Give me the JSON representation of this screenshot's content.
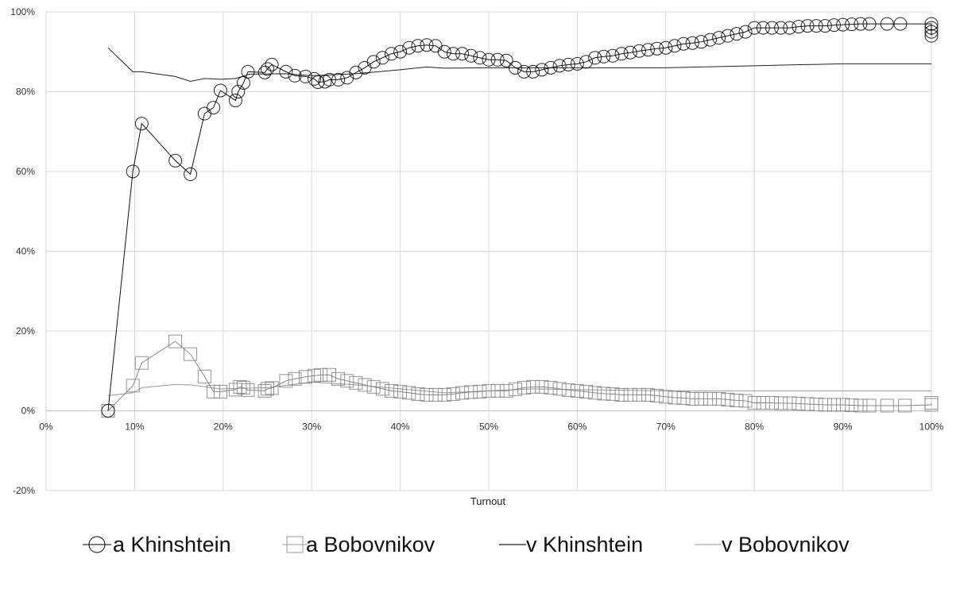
{
  "chart_data": {
    "type": "line",
    "title": "",
    "xlabel": "Turnout",
    "ylabel": "",
    "xlim": [
      0,
      100
    ],
    "ylim": [
      -20,
      100
    ],
    "grid": true,
    "legend_position": "bottom",
    "x_ticks": [
      "0%",
      "10%",
      "20%",
      "30%",
      "40%",
      "50%",
      "60%",
      "70%",
      "80%",
      "90%",
      "100%"
    ],
    "y_ticks": [
      "-20%",
      "0%",
      "20%",
      "40%",
      "60%",
      "80%",
      "100%"
    ],
    "series": [
      {
        "name": "a Khinshtein",
        "color": "#000000",
        "marker": "circle",
        "points": [
          [
            7,
            0
          ],
          [
            9.8,
            60
          ],
          [
            10.8,
            72
          ],
          [
            14.6,
            62.7
          ],
          [
            16.3,
            59.3
          ],
          [
            17.9,
            74.5
          ],
          [
            18.9,
            76
          ],
          [
            19.7,
            80.3
          ],
          [
            21.4,
            77.8
          ],
          [
            21.7,
            80
          ],
          [
            22.3,
            82.2
          ],
          [
            22.8,
            85
          ],
          [
            24.7,
            84.8
          ],
          [
            25,
            85.7
          ],
          [
            25.5,
            86.8
          ],
          [
            27.1,
            85
          ],
          [
            28.1,
            84
          ],
          [
            29.3,
            83.8
          ],
          [
            30.3,
            83.2
          ],
          [
            30.7,
            82.4
          ],
          [
            31.5,
            82.5
          ],
          [
            32,
            83
          ],
          [
            33,
            83
          ],
          [
            34,
            83.5
          ],
          [
            35,
            84.8
          ],
          [
            36,
            86
          ],
          [
            37,
            87.5
          ],
          [
            38,
            88.5
          ],
          [
            39,
            89.5
          ],
          [
            40,
            90
          ],
          [
            41,
            91
          ],
          [
            42,
            91.5
          ],
          [
            43,
            91.7
          ],
          [
            44,
            91.5
          ],
          [
            45,
            90
          ],
          [
            46,
            89.5
          ],
          [
            47,
            89.5
          ],
          [
            48,
            89
          ],
          [
            49,
            88.5
          ],
          [
            50,
            88
          ],
          [
            51,
            88
          ],
          [
            52,
            87.8
          ],
          [
            53,
            86
          ],
          [
            54,
            85
          ],
          [
            55,
            85
          ],
          [
            56,
            85.5
          ],
          [
            57,
            86
          ],
          [
            58,
            86.5
          ],
          [
            59,
            86.8
          ],
          [
            60,
            87
          ],
          [
            61,
            87.5
          ],
          [
            62,
            88.5
          ],
          [
            63,
            88.8
          ],
          [
            64,
            89
          ],
          [
            65,
            89.5
          ],
          [
            66,
            89.8
          ],
          [
            67,
            90.2
          ],
          [
            68,
            90.5
          ],
          [
            69,
            90.8
          ],
          [
            70,
            91
          ],
          [
            71,
            91.5
          ],
          [
            72,
            92
          ],
          [
            73,
            92.2
          ],
          [
            74,
            92.5
          ],
          [
            75,
            93
          ],
          [
            76,
            93.5
          ],
          [
            77,
            94
          ],
          [
            78,
            94.5
          ],
          [
            79,
            95
          ],
          [
            80,
            96
          ],
          [
            81,
            96
          ],
          [
            82,
            96
          ],
          [
            83,
            96
          ],
          [
            84,
            96
          ],
          [
            85,
            96.3
          ],
          [
            86,
            96.5
          ],
          [
            87,
            96.5
          ],
          [
            88,
            96.5
          ],
          [
            89,
            96.7
          ],
          [
            90,
            96.8
          ],
          [
            91,
            96.9
          ],
          [
            92,
            97
          ],
          [
            93,
            97
          ],
          [
            95,
            97
          ],
          [
            96.5,
            97
          ],
          [
            100,
            97
          ],
          [
            100,
            96
          ],
          [
            100,
            95
          ],
          [
            100,
            94
          ]
        ]
      },
      {
        "name": "a Bobovnikov",
        "color": "#808080",
        "marker": "square",
        "points": [
          [
            7,
            0
          ],
          [
            9.8,
            6.3
          ],
          [
            10.8,
            12
          ],
          [
            14.6,
            17.4
          ],
          [
            16.3,
            14.2
          ],
          [
            17.9,
            8.6
          ],
          [
            18.9,
            4.8
          ],
          [
            19.7,
            4.8
          ],
          [
            21.4,
            5.3
          ],
          [
            21.9,
            6
          ],
          [
            22.3,
            5.8
          ],
          [
            22.8,
            5.2
          ],
          [
            24.7,
            5
          ],
          [
            25,
            5.5
          ],
          [
            25.5,
            5.7
          ],
          [
            27.1,
            7.5
          ],
          [
            28.1,
            8
          ],
          [
            29.3,
            8.5
          ],
          [
            30.3,
            8.8
          ],
          [
            31,
            9
          ],
          [
            32,
            9
          ],
          [
            33,
            8
          ],
          [
            34,
            7.5
          ],
          [
            35,
            7
          ],
          [
            36,
            6.5
          ],
          [
            37,
            6
          ],
          [
            38,
            5.5
          ],
          [
            39,
            5
          ],
          [
            40,
            4.8
          ],
          [
            41,
            4.5
          ],
          [
            42,
            4.2
          ],
          [
            43,
            4
          ],
          [
            44,
            4
          ],
          [
            45,
            4
          ],
          [
            46,
            4.2
          ],
          [
            47,
            4.5
          ],
          [
            48,
            4.7
          ],
          [
            49,
            4.8
          ],
          [
            50,
            5
          ],
          [
            51,
            5
          ],
          [
            52,
            5
          ],
          [
            53,
            5.4
          ],
          [
            54,
            5.8
          ],
          [
            55,
            6
          ],
          [
            56,
            6
          ],
          [
            57,
            5.8
          ],
          [
            58,
            5.5
          ],
          [
            59,
            5.2
          ],
          [
            60,
            5
          ],
          [
            61,
            4.8
          ],
          [
            62,
            4.5
          ],
          [
            63,
            4.3
          ],
          [
            64,
            4.2
          ],
          [
            65,
            4
          ],
          [
            66,
            4
          ],
          [
            67,
            4
          ],
          [
            68,
            4
          ],
          [
            69,
            3.8
          ],
          [
            70,
            3.5
          ],
          [
            71,
            3.3
          ],
          [
            72,
            3.2
          ],
          [
            73,
            3
          ],
          [
            74,
            3
          ],
          [
            75,
            3
          ],
          [
            76,
            3
          ],
          [
            77,
            2.8
          ],
          [
            78,
            2.6
          ],
          [
            79,
            2.5
          ],
          [
            80,
            2
          ],
          [
            81,
            2
          ],
          [
            82,
            2
          ],
          [
            83,
            1.9
          ],
          [
            84,
            1.9
          ],
          [
            85,
            1.8
          ],
          [
            86,
            1.7
          ],
          [
            87,
            1.6
          ],
          [
            88,
            1.5
          ],
          [
            89,
            1.5
          ],
          [
            90,
            1.5
          ],
          [
            91,
            1.4
          ],
          [
            92,
            1.3
          ],
          [
            93,
            1.3
          ],
          [
            95,
            1.3
          ],
          [
            97,
            1.3
          ],
          [
            100,
            1.5
          ],
          [
            100,
            2
          ]
        ]
      },
      {
        "name": "v Khinshtein",
        "color": "#222222",
        "marker": "none",
        "points": [
          [
            7,
            91
          ],
          [
            9.8,
            85
          ],
          [
            10.8,
            85
          ],
          [
            14.6,
            83.8
          ],
          [
            16.3,
            82.6
          ],
          [
            17.9,
            83.3
          ],
          [
            19.7,
            83.1
          ],
          [
            21.4,
            83.3
          ],
          [
            23,
            84.4
          ],
          [
            27,
            84.5
          ],
          [
            30,
            84
          ],
          [
            35,
            84.5
          ],
          [
            40,
            85.5
          ],
          [
            43,
            86.2
          ],
          [
            45,
            85.9
          ],
          [
            50,
            86
          ],
          [
            60,
            86
          ],
          [
            70,
            86
          ],
          [
            80,
            86.5
          ],
          [
            90,
            87
          ],
          [
            100,
            87
          ]
        ]
      },
      {
        "name": "v Bobovnikov",
        "color": "#999999",
        "marker": "none",
        "points": [
          [
            7,
            3.8
          ],
          [
            9.8,
            4.5
          ],
          [
            10.8,
            5.8
          ],
          [
            14.6,
            6.6
          ],
          [
            16.3,
            6.5
          ],
          [
            19.7,
            5.5
          ],
          [
            25,
            5.8
          ],
          [
            30,
            7.2
          ],
          [
            35,
            6.5
          ],
          [
            40,
            5.5
          ],
          [
            45,
            4.5
          ],
          [
            50,
            5
          ],
          [
            55,
            5.5
          ],
          [
            60,
            5.3
          ],
          [
            70,
            5
          ],
          [
            80,
            5
          ],
          [
            90,
            5
          ],
          [
            100,
            5
          ]
        ]
      }
    ]
  }
}
